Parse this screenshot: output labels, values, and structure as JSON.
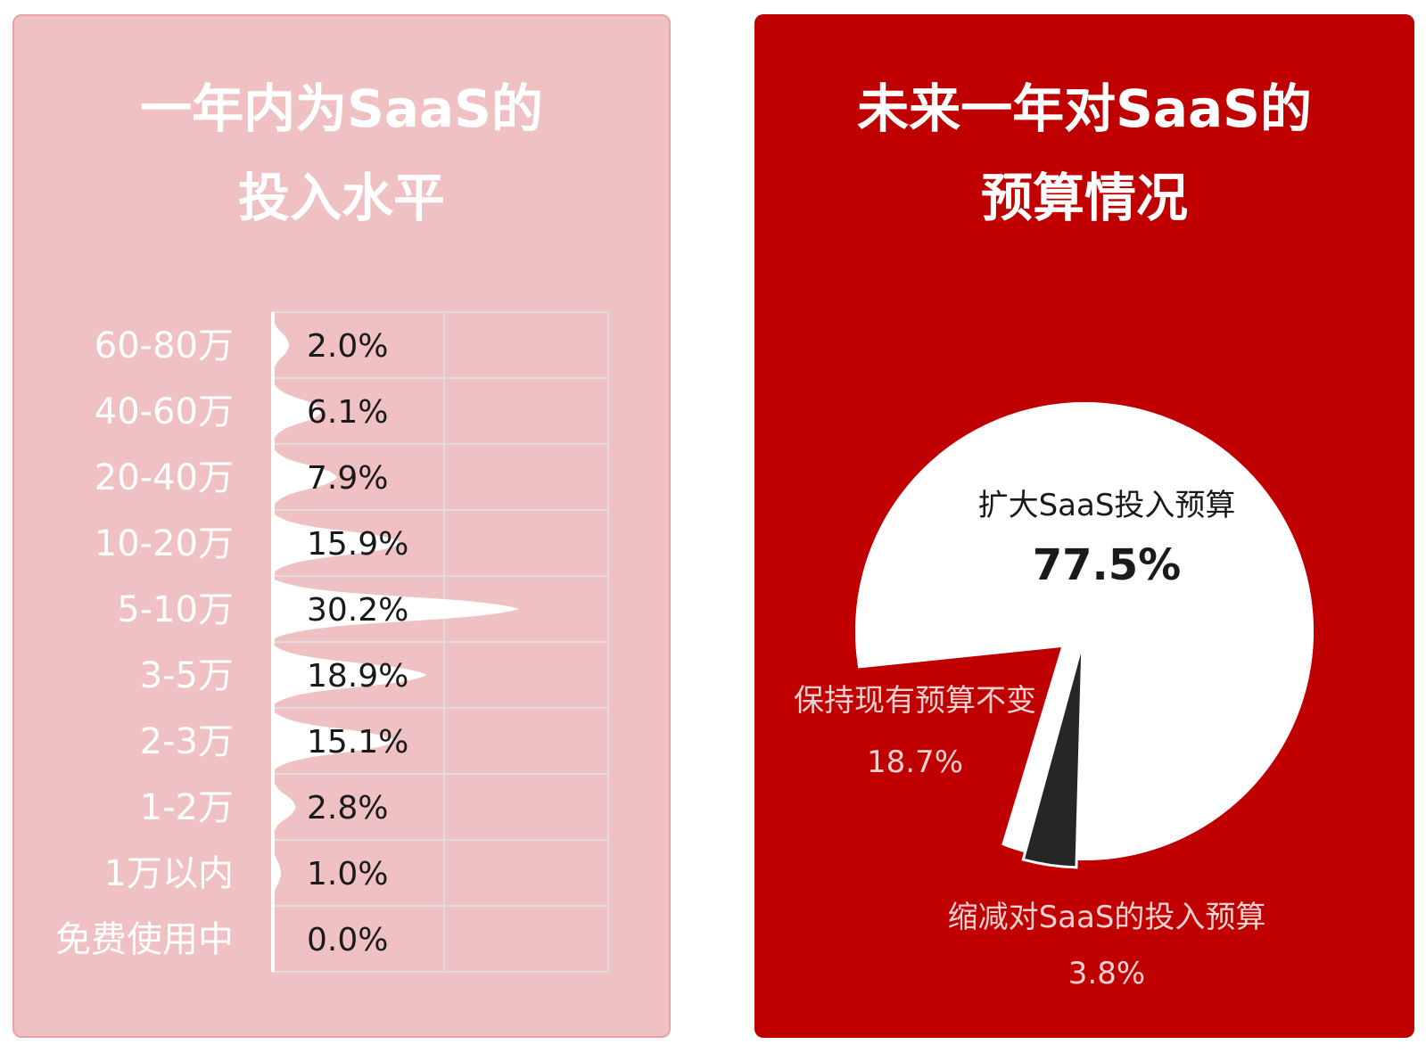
{
  "chart_data": [
    {
      "type": "bar",
      "title": [
        "一年内为SaaS的",
        "投入水平"
      ],
      "categories": [
        "60-80万",
        "40-60万",
        "20-40万",
        "10-20万",
        "5-10万",
        "3-5万",
        "2-3万",
        "1-2万",
        "1万以内",
        "免费使用中"
      ],
      "values": [
        2.0,
        6.1,
        7.9,
        15.9,
        30.2,
        18.9,
        15.1,
        2.8,
        1.0,
        0.0
      ],
      "value_labels": [
        "2.0%",
        "6.1%",
        "7.9%",
        "15.9%",
        "30.2%",
        "18.9%",
        "15.1%",
        "2.8%",
        "1.0%",
        "0.0%"
      ],
      "unit": "%",
      "orientation": "horizontal",
      "grid": true,
      "colors": {
        "panel": "#efc1c3",
        "panel_border": "#e8a3a6",
        "bars": "#ffffff",
        "category_text": "#ffffff",
        "value_text": "#1a1a1a",
        "grid": "#e3dcdc"
      }
    },
    {
      "type": "pie",
      "title": [
        "未来一年对SaaS的",
        "预算情况"
      ],
      "slices": [
        {
          "label": "扩大SaaS投入预算",
          "value": 77.5,
          "value_label": "77.5%",
          "color": "#ffffff"
        },
        {
          "label": "缩减对SaaS的投入预算",
          "value": 3.8,
          "value_label": "3.8%",
          "color": "#262626"
        },
        {
          "label": "保持现有预算不变",
          "value": 18.7,
          "value_label": "18.7%",
          "color": "#c00000"
        }
      ],
      "colors": {
        "panel": "#c00000"
      }
    }
  ]
}
